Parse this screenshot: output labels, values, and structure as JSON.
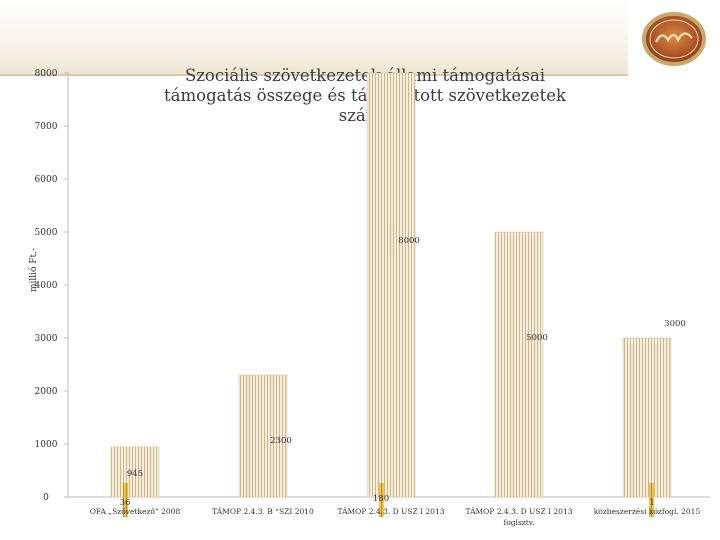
{
  "chart_data": {
    "type": "bar",
    "title": [
      "Szociális szövetkezetek állami támogatásai",
      "támogatás összege és támogatott szövetkezetek",
      "száma"
    ],
    "ylabel": "millió Ft.-",
    "xlabel": "",
    "ylim": [
      0,
      8000
    ],
    "yticks": [
      "0",
      "1000",
      "2000",
      "3000",
      "4000",
      "5000",
      "6000",
      "7000",
      "8000"
    ],
    "grid": false,
    "categories": [
      [
        "OFA „Szövetkező” 2008"
      ],
      [
        "TÁMOP 2.4.3. B “SZI 2010"
      ],
      [
        "TÁMOP 2.4.3. D USZ I 2013"
      ],
      [
        "TÁMOP 2.4.3. D USZ I 2013",
        "foglsztv."
      ],
      [
        "közbeszerzési közfogl. 2015"
      ]
    ],
    "series": [
      {
        "color": "#f2e7cf",
        "values": [
          945,
          2300,
          8000,
          5000,
          3000
        ],
        "labels": [
          "945",
          "2300",
          "8000",
          "5000",
          "3000"
        ]
      },
      {
        "color": "#e8b431",
        "values": [
          36,
          0,
          180,
          0,
          1
        ],
        "labels": [
          "36",
          "",
          "180",
          "",
          "1"
        ]
      }
    ]
  }
}
